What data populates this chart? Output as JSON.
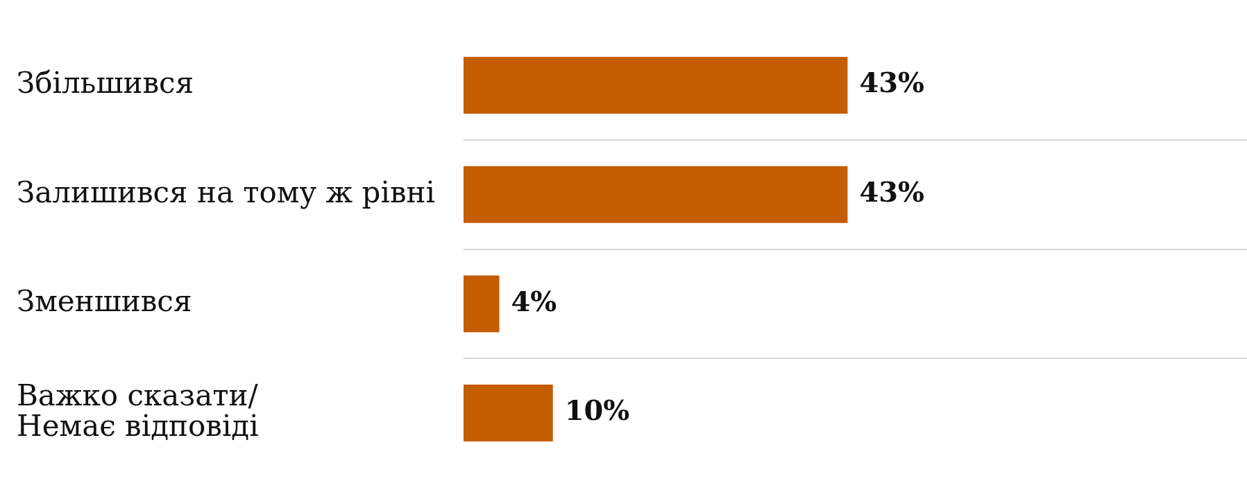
{
  "chart_data": {
    "type": "bar",
    "orientation": "horizontal",
    "categories": [
      "Збільшився",
      "Залишився на тому ж рівні",
      "Зменшився",
      "Важко сказати/\nНемає відповіді"
    ],
    "values": [
      43,
      43,
      4,
      10
    ],
    "value_labels": [
      "43%",
      "43%",
      "4%",
      "10%"
    ],
    "color": "#c45c00",
    "grid": "y"
  }
}
